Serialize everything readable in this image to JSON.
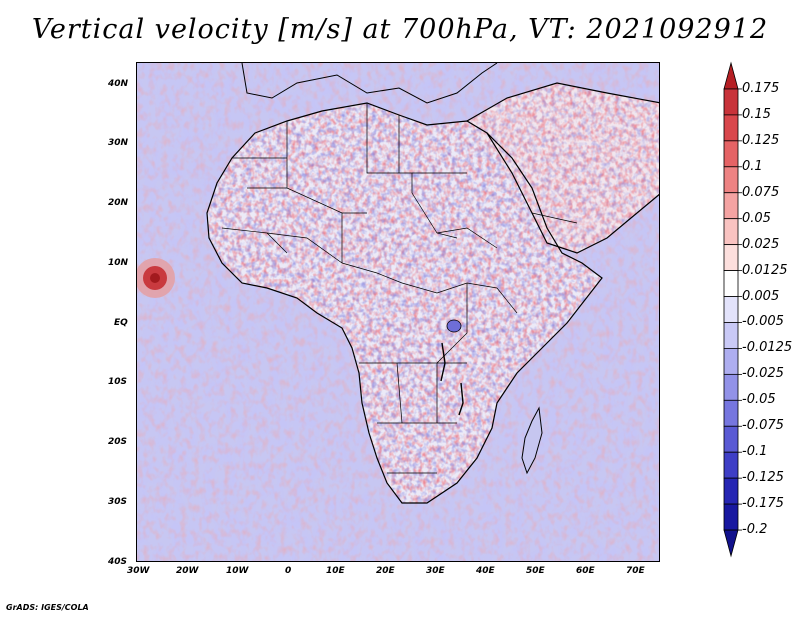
{
  "title": "Vertical velocity [m/s] at 700hPa, VT: 2021092912",
  "credit": "GrADS: IGES/COLA",
  "map": {
    "lon_range": [
      -30,
      75
    ],
    "lat_range": [
      -40,
      45
    ],
    "x_ticks": [
      "30W",
      "20W",
      "10W",
      "0",
      "10E",
      "20E",
      "30E",
      "40E",
      "50E",
      "60E",
      "70E"
    ],
    "y_ticks": [
      "40N",
      "30N",
      "20N",
      "10N",
      "EQ",
      "10S",
      "20S",
      "30S",
      "40S"
    ],
    "features": [
      "african-continent",
      "country-borders",
      "arabian-peninsula",
      "madagascar",
      "tropical-cyclone-atlantic"
    ]
  },
  "colorbar": {
    "labels": [
      "0.175",
      "0.15",
      "0.125",
      "0.1",
      "0.075",
      "0.05",
      "0.025",
      "0.0125",
      "0.005",
      "-0.005",
      "-0.0125",
      "-0.025",
      "-0.05",
      "-0.075",
      "-0.1",
      "-0.125",
      "-0.175",
      "-0.2"
    ],
    "colors": [
      "#b51f24",
      "#c8333a",
      "#d9474c",
      "#e56365",
      "#ee8383",
      "#f4a3a2",
      "#f9c3c1",
      "#fcdfdd",
      "#ffffff",
      "#e3e3fb",
      "#c9c9f6",
      "#aeaef0",
      "#9292e8",
      "#7676df",
      "#5a5ad4",
      "#3e3ec6",
      "#2626b3",
      "#1818a0",
      "#11118c"
    ]
  }
}
